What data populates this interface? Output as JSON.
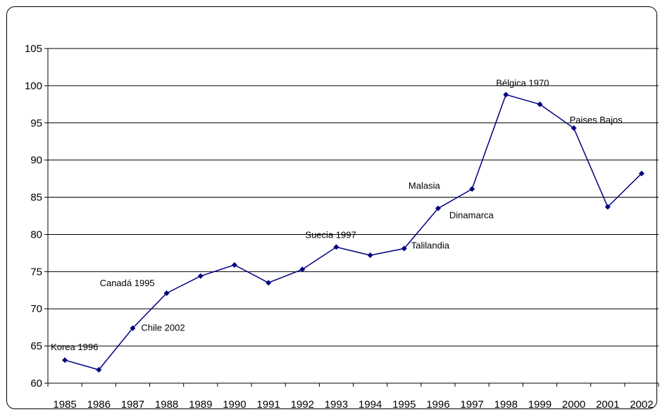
{
  "chart_data": {
    "type": "line",
    "title": "",
    "xlabel": "",
    "ylabel": "",
    "x": [
      "1985",
      "1986",
      "1987",
      "1988",
      "1989",
      "1990",
      "1991",
      "1992",
      "1993",
      "1994",
      "1995",
      "1996",
      "1997",
      "1998",
      "1999",
      "2000",
      "2001",
      "2002"
    ],
    "series": [
      {
        "color": "#000080",
        "values": [
          63.1,
          61.8,
          67.4,
          72.1,
          74.4,
          75.9,
          73.5,
          75.3,
          78.3,
          77.2,
          78.1,
          83.5,
          86.1,
          98.8,
          97.5,
          94.3,
          83.7,
          88.2
        ]
      }
    ],
    "ylim": [
      60,
      105
    ],
    "yticks": [
      "60",
      "65",
      "70",
      "75",
      "80",
      "85",
      "90",
      "95",
      "100",
      "105"
    ],
    "grid": true,
    "legend": "none",
    "annotations": [
      {
        "text": "Korea 1996",
        "index": 0
      },
      {
        "text": "Chile 2002",
        "index": 2
      },
      {
        "text": "Canadá 1995",
        "index": 3
      },
      {
        "text": "Suecia 1997",
        "index": 8
      },
      {
        "text": "Talilandia",
        "index": 10
      },
      {
        "text": "Malasia",
        "index": 11
      },
      {
        "text": "Dinamarca",
        "index": 11
      },
      {
        "text": "Bélgica 1970",
        "index": 13
      },
      {
        "text": "Paises Bajos",
        "index": 15
      }
    ]
  }
}
